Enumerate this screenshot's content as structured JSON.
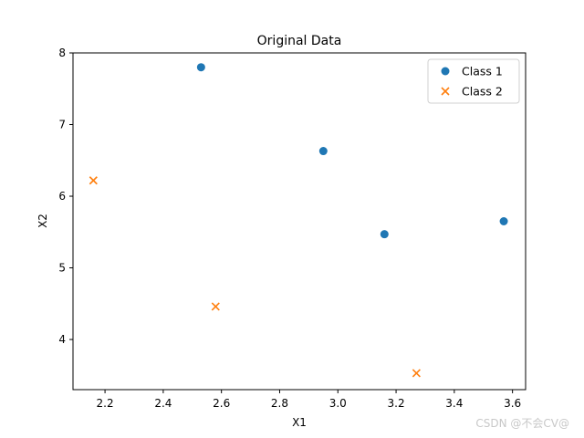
{
  "chart_data": {
    "type": "scatter",
    "title": "Original Data",
    "xlabel": "X1",
    "ylabel": "X2",
    "xlim": [
      2.09,
      3.645
    ],
    "ylim": [
      3.3,
      8.0
    ],
    "xticks": [
      "2.2",
      "2.4",
      "2.6",
      "2.8",
      "3.0",
      "3.2",
      "3.4",
      "3.6"
    ],
    "yticks": [
      "4",
      "5",
      "6",
      "7",
      "8"
    ],
    "xtick_values": [
      2.2,
      2.4,
      2.6,
      2.8,
      3.0,
      3.2,
      3.4,
      3.6
    ],
    "ytick_values": [
      4,
      5,
      6,
      7,
      8
    ],
    "grid": false,
    "legend": "upper-right",
    "series": [
      {
        "name": "Class 1",
        "marker": "circle",
        "color": "#1f77b4",
        "points": [
          [
            2.53,
            7.8
          ],
          [
            2.95,
            6.63
          ],
          [
            3.16,
            5.47
          ],
          [
            3.57,
            5.65
          ]
        ]
      },
      {
        "name": "Class 2",
        "marker": "x",
        "color": "#ff7f0e",
        "points": [
          [
            2.16,
            6.22
          ],
          [
            2.58,
            4.46
          ],
          [
            3.27,
            3.53
          ]
        ]
      }
    ]
  },
  "watermark": "CSDN @不会CV@"
}
